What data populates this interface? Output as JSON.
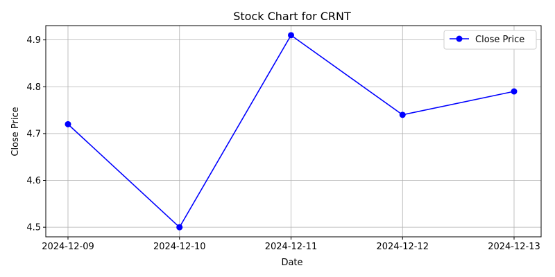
{
  "chart_data": {
    "type": "line",
    "title": "Stock Chart for CRNT",
    "xlabel": "Date",
    "ylabel": "Close Price",
    "categories": [
      "2024-12-09",
      "2024-12-10",
      "2024-12-11",
      "2024-12-12",
      "2024-12-13"
    ],
    "series": [
      {
        "name": "Close Price",
        "values": [
          4.72,
          4.5,
          4.91,
          4.74,
          4.79
        ],
        "color": "#0000ff"
      }
    ],
    "yticks": [
      4.5,
      4.6,
      4.7,
      4.8,
      4.9
    ],
    "ytick_labels": [
      "4.5",
      "4.6",
      "4.7",
      "4.8",
      "4.9"
    ],
    "ylim": [
      4.4795,
      4.9305
    ],
    "grid": true,
    "legend": "top-right",
    "grid_color": "#b0b0b0"
  }
}
